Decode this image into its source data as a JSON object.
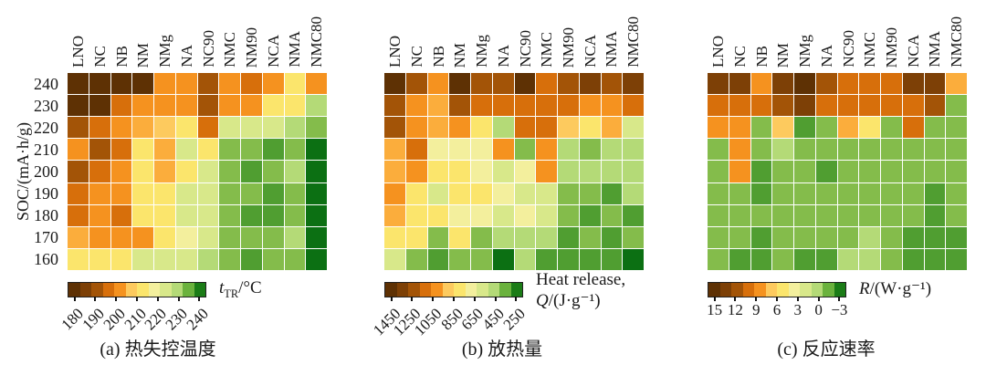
{
  "figure": {
    "y_axis_label": "SOC/(mA·h/g)"
  },
  "palette": [
    "#5e3104",
    "#7d4006",
    "#a35407",
    "#d76f0b",
    "#f5921f",
    "#fbad3c",
    "#fdca5e",
    "#fbe56c",
    "#f3ef9d",
    "#d8e88a",
    "#b4da77",
    "#84bc4b",
    "#509e31",
    "#2e8c22",
    "#0c7013"
  ],
  "colorbar_colors": [
    "#5e3104",
    "#7d4006",
    "#a35407",
    "#d76f0b",
    "#f5921f",
    "#fdca5e",
    "#fbe56c",
    "#f3ef9d",
    "#d8e88a",
    "#b4da77",
    "#6ab23d",
    "#1b7c17"
  ],
  "chart_data": {
    "type": "heatmap",
    "columns": [
      "LNO",
      "NC",
      "NB",
      "NM",
      "NMg",
      "NA",
      "NC90",
      "NMC",
      "NM90",
      "NCA",
      "NMA",
      "NMC80"
    ],
    "rows": [
      "240",
      "230",
      "220",
      "210",
      "200",
      "190",
      "180",
      "170",
      "160"
    ],
    "y_axis_label": "SOC/(mA·h/g)",
    "value_note": "Cell values are palette indices 0–14: 0 = dark brown end of each colorbar (left tick value), 14 = dark green end (right tick value); intermediate indices interpolate linearly between the left and right tick values of each chart's scale.",
    "charts": [
      {
        "key": "a",
        "caption": "(a) 热失控温度",
        "legend": {
          "italic": "t",
          "sub": "TR",
          "rest": "/°C"
        },
        "ticks": [
          "180",
          "190",
          "200",
          "210",
          "220",
          "230",
          "240"
        ],
        "ticks_rotated": true,
        "scale_left_value": 180,
        "scale_right_value": 240,
        "grid": [
          [
            0,
            0,
            0,
            0,
            4,
            4,
            2,
            4,
            3,
            4,
            7,
            4
          ],
          [
            0,
            0,
            3,
            4,
            4,
            4,
            2,
            4,
            4,
            7,
            7,
            10
          ],
          [
            2,
            3,
            4,
            5,
            6,
            7,
            3,
            9,
            9,
            9,
            10,
            11
          ],
          [
            4,
            2,
            3,
            7,
            5,
            9,
            7,
            11,
            11,
            12,
            11,
            14
          ],
          [
            2,
            3,
            4,
            7,
            5,
            7,
            9,
            11,
            12,
            11,
            10,
            14
          ],
          [
            3,
            4,
            4,
            7,
            7,
            9,
            9,
            11,
            11,
            12,
            11,
            14
          ],
          [
            3,
            4,
            3,
            7,
            7,
            9,
            9,
            11,
            12,
            12,
            11,
            14
          ],
          [
            5,
            4,
            4,
            4,
            7,
            8,
            9,
            11,
            11,
            11,
            10,
            14
          ],
          [
            7,
            7,
            7,
            9,
            9,
            9,
            10,
            11,
            12,
            11,
            11,
            14
          ]
        ]
      },
      {
        "key": "b",
        "caption": "(b) 放热量",
        "legend": {
          "line1": "Heat release,",
          "italic": "Q",
          "rest": "/(J·g⁻¹)"
        },
        "ticks": [
          "1450",
          "1250",
          "1050",
          "850",
          "650",
          "450",
          "250"
        ],
        "ticks_rotated": true,
        "scale_left_value": 1450,
        "scale_right_value": 250,
        "grid": [
          [
            0,
            2,
            4,
            0,
            2,
            2,
            0,
            3,
            2,
            1,
            2,
            1
          ],
          [
            2,
            4,
            5,
            2,
            3,
            3,
            3,
            3,
            3,
            4,
            4,
            3
          ],
          [
            2,
            4,
            5,
            4,
            7,
            10,
            3,
            3,
            6,
            7,
            5,
            9
          ],
          [
            5,
            3,
            8,
            8,
            8,
            4,
            11,
            4,
            10,
            11,
            10,
            10
          ],
          [
            5,
            4,
            7,
            7,
            8,
            9,
            8,
            4,
            10,
            10,
            10,
            10
          ],
          [
            4,
            7,
            9,
            7,
            7,
            8,
            9,
            9,
            11,
            11,
            12,
            10
          ],
          [
            5,
            7,
            7,
            8,
            8,
            9,
            8,
            9,
            11,
            12,
            11,
            12
          ],
          [
            7,
            7,
            11,
            7,
            11,
            10,
            10,
            10,
            12,
            11,
            12,
            11
          ],
          [
            9,
            11,
            12,
            11,
            11,
            14,
            10,
            12,
            12,
            12,
            12,
            14
          ]
        ]
      },
      {
        "key": "c",
        "caption": "(c) 反应速率",
        "legend": {
          "italic": "R",
          "rest": "/(W·g⁻¹)"
        },
        "ticks": [
          "15",
          "12",
          "9",
          "6",
          "3",
          "0",
          "−3"
        ],
        "ticks_rotated": false,
        "scale_left_value": 15,
        "scale_right_value": -3,
        "grid": [
          [
            1,
            1,
            4,
            1,
            0,
            2,
            3,
            3,
            3,
            1,
            1,
            5
          ],
          [
            3,
            3,
            3,
            2,
            1,
            3,
            3,
            3,
            3,
            3,
            2,
            11
          ],
          [
            4,
            4,
            11,
            6,
            12,
            11,
            5,
            7,
            11,
            3,
            11,
            11
          ],
          [
            11,
            4,
            11,
            10,
            11,
            11,
            11,
            11,
            11,
            11,
            11,
            11
          ],
          [
            11,
            4,
            12,
            11,
            11,
            12,
            11,
            11,
            11,
            11,
            11,
            11
          ],
          [
            11,
            11,
            12,
            11,
            11,
            11,
            11,
            11,
            11,
            11,
            12,
            11
          ],
          [
            11,
            11,
            11,
            11,
            11,
            11,
            11,
            11,
            11,
            11,
            12,
            11
          ],
          [
            11,
            11,
            12,
            11,
            11,
            11,
            11,
            10,
            11,
            12,
            12,
            12
          ],
          [
            11,
            12,
            12,
            11,
            12,
            12,
            10,
            10,
            11,
            12,
            12,
            12
          ]
        ]
      }
    ]
  }
}
